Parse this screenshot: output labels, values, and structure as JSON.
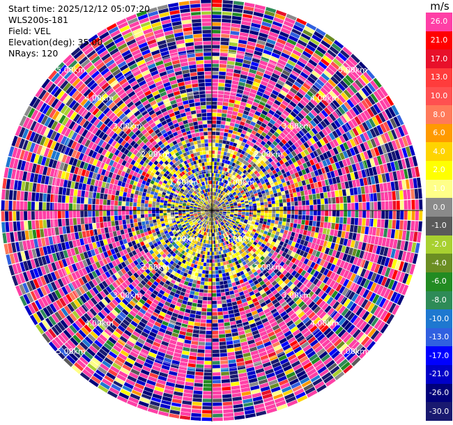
{
  "header": {
    "start_time": "Start time: 2025/12/12 05:07:20",
    "station": "WLS200s-181",
    "field": "Field: VEL",
    "elevation": "Elevation(deg): 35.00",
    "nrays": "NRays: 120"
  },
  "colorbar": {
    "unit": "m/s",
    "entries": [
      {
        "label": "26.0",
        "color": "#ff3fa6"
      },
      {
        "label": "21.0",
        "color": "#ff0000"
      },
      {
        "label": "17.0",
        "color": "#e8102a"
      },
      {
        "label": "13.0",
        "color": "#ff3c3c"
      },
      {
        "label": "10.0",
        "color": "#ff5050"
      },
      {
        "label": "8.0",
        "color": "#ff7a5a"
      },
      {
        "label": "6.0",
        "color": "#ff9a00"
      },
      {
        "label": "4.0",
        "color": "#ffd400"
      },
      {
        "label": "2.0",
        "color": "#ffff00"
      },
      {
        "label": "1.0",
        "color": "#ffff88"
      },
      {
        "label": "0.0",
        "color": "#8a8a8a"
      },
      {
        "label": "-1.0",
        "color": "#5a5a5a"
      },
      {
        "label": "-2.0",
        "color": "#a8d030"
      },
      {
        "label": "-4.0",
        "color": "#6b8e23"
      },
      {
        "label": "-6.0",
        "color": "#228b22"
      },
      {
        "label": "-8.0",
        "color": "#2e8b57"
      },
      {
        "label": "-10.0",
        "color": "#1e78d0"
      },
      {
        "label": "-13.0",
        "color": "#3060e0"
      },
      {
        "label": "-17.0",
        "color": "#0000ff"
      },
      {
        "label": "-21.0",
        "color": "#0000c8"
      },
      {
        "label": "-26.0",
        "color": "#00007a"
      },
      {
        "label": "-30.0",
        "color": "#191970"
      }
    ]
  },
  "chart_data": {
    "type": "heatmap",
    "field": "VEL",
    "units": "m/s",
    "n_rays": 120,
    "range_rings_km": [
      1.0,
      2.0,
      3.0,
      4.0,
      5.0
    ],
    "ring_labels": [
      "1.00km",
      "2.00km",
      "3.00km",
      "4.00km",
      "5.00km"
    ],
    "max_range_km": 5.3,
    "value_levels": [
      -30.0,
      -26.0,
      -21.0,
      -17.0,
      -13.0,
      -10.0,
      -8.0,
      -6.0,
      -4.0,
      -2.0,
      -1.0,
      0.0,
      1.0,
      2.0,
      4.0,
      6.0,
      8.0,
      10.0,
      13.0,
      17.0,
      21.0,
      26.0
    ]
  }
}
